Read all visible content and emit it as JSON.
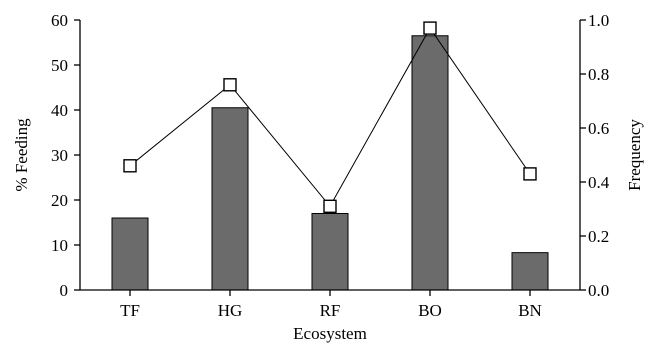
{
  "chart_data": {
    "type": "bar",
    "categories": [
      "TF",
      "HG",
      "RF",
      "BO",
      "BN"
    ],
    "series": [
      {
        "name": "% Feeding",
        "kind": "bar",
        "axis": "left",
        "values": [
          16,
          40.5,
          17,
          56.5,
          8.3
        ]
      },
      {
        "name": "Frequency",
        "kind": "line",
        "axis": "right",
        "marker": "open-square",
        "values": [
          0.46,
          0.76,
          0.31,
          0.97,
          0.43
        ]
      }
    ],
    "title": "",
    "xlabel": "Ecosystem",
    "ylabel": "% Feeding",
    "y2label": "Frequency",
    "ylim": [
      0,
      60
    ],
    "y2lim": [
      0,
      1.0
    ],
    "yticks": [
      "0",
      "10",
      "20",
      "30",
      "40",
      "50",
      "60"
    ],
    "y2ticks": [
      "0.0",
      "0.2",
      "0.4",
      "0.6",
      "0.8",
      "1.0"
    ],
    "grid": false,
    "colors": {
      "bar": "#6b6b6b",
      "line": "#000000",
      "marker_fill": "#ffffff"
    }
  }
}
